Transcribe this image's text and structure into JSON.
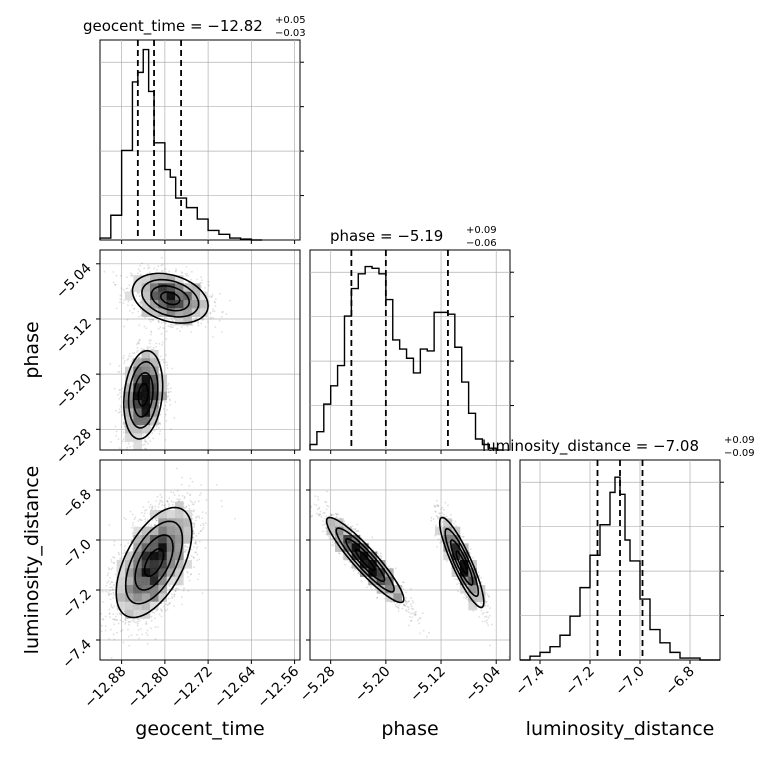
{
  "chart_data": {
    "type": "corner",
    "parameters": [
      {
        "name": "geocent_time",
        "range": [
          -12.92,
          -12.55
        ],
        "ticks": [
          -12.88,
          -12.8,
          -12.72,
          -12.64,
          -12.56
        ],
        "tick_labels": [
          "−12.88",
          "−12.80",
          "−12.72",
          "−12.64",
          "−12.56"
        ],
        "title": {
          "main": "geocent_time = −12.82",
          "upper": "+0.05",
          "lower": "−0.03"
        },
        "quantiles": [
          -12.85,
          -12.82,
          -12.77
        ],
        "hist": {
          "edges": [
            -12.92,
            -12.9,
            -12.88,
            -12.86,
            -12.85,
            -12.84,
            -12.83,
            -12.82,
            -12.8,
            -12.79,
            -12.78,
            -12.76,
            -12.74,
            -12.72,
            -12.7,
            -12.68,
            -12.66,
            -12.64,
            -12.62
          ],
          "counts": [
            0.01,
            0.13,
            0.47,
            0.83,
            0.88,
            1.0,
            0.78,
            0.51,
            0.37,
            0.33,
            0.22,
            0.17,
            0.11,
            0.05,
            0.03,
            0.01,
            0.005,
            0.0
          ]
        },
        "ymax": 1.05
      },
      {
        "name": "phase",
        "range": [
          -5.31,
          -5.02
        ],
        "ticks": [
          -5.28,
          -5.2,
          -5.12,
          -5.04
        ],
        "tick_labels": [
          "−5.28",
          "−5.20",
          "−5.12",
          "−5.04"
        ],
        "title": {
          "main": "phase = −5.19",
          "upper": "+0.09",
          "lower": "−0.06"
        },
        "quantiles": [
          -5.25,
          -5.2,
          -5.11
        ],
        "hist": {
          "edges": [
            -5.31,
            -5.3,
            -5.29,
            -5.28,
            -5.27,
            -5.26,
            -5.25,
            -5.24,
            -5.23,
            -5.22,
            -5.21,
            -5.2,
            -5.19,
            -5.18,
            -5.17,
            -5.16,
            -5.15,
            -5.14,
            -5.13,
            -5.12,
            -5.11,
            -5.1,
            -5.09,
            -5.08,
            -5.07,
            -5.06,
            -5.05,
            -5.04,
            -5.03
          ],
          "counts": [
            0.03,
            0.1,
            0.25,
            0.35,
            0.46,
            0.73,
            0.88,
            0.96,
            1.0,
            0.99,
            0.96,
            0.82,
            0.6,
            0.55,
            0.5,
            0.42,
            0.55,
            0.54,
            0.75,
            0.75,
            0.74,
            0.56,
            0.37,
            0.2,
            0.06,
            0.03,
            0.01,
            0.0
          ],
          "hist_note": "step histogram"
        },
        "ymax": 1.09
      },
      {
        "name": "luminosity_distance",
        "range": [
          -7.48,
          -6.68
        ],
        "ticks": [
          -7.4,
          -7.2,
          -7.0,
          -6.8
        ],
        "tick_labels": [
          "−7.4",
          "−7.2",
          "−7.0",
          "−6.8"
        ],
        "title": {
          "main": "luminosity_distance = −7.08",
          "upper": "+0.09",
          "lower": "−0.09"
        },
        "quantiles": [
          -7.17,
          -7.08,
          -6.99
        ],
        "hist": {
          "edges": [
            -7.48,
            -7.44,
            -7.4,
            -7.36,
            -7.32,
            -7.28,
            -7.24,
            -7.2,
            -7.16,
            -7.12,
            -7.1,
            -7.08,
            -7.06,
            -7.04,
            -7.0,
            -6.96,
            -6.92,
            -6.88,
            -6.84,
            -6.8,
            -6.76,
            -6.72,
            -6.68
          ],
          "counts": [
            0.0,
            0.02,
            0.04,
            0.07,
            0.13,
            0.23,
            0.38,
            0.55,
            0.71,
            0.88,
            0.96,
            0.87,
            0.63,
            0.52,
            0.32,
            0.16,
            0.09,
            0.04,
            0.01,
            0.01,
            0.0,
            0.0
          ]
        },
        "ymax": 1.05
      }
    ],
    "pairs": [
      {
        "x": "geocent_time",
        "y": "phase",
        "modes": [
          {
            "mean": [
              -12.79,
              -5.09
            ],
            "sigma": [
              0.035,
              0.018
            ],
            "corr": -0.3,
            "weight": 0.45
          },
          {
            "mean": [
              -12.84,
              -5.23
            ],
            "sigma": [
              0.018,
              0.032
            ],
            "corr": 0.2,
            "weight": 0.55
          }
        ]
      },
      {
        "x": "geocent_time",
        "y": "luminosity_distance",
        "modes": [
          {
            "mean": [
              -12.82,
              -7.09
            ],
            "sigma": [
              0.035,
              0.11
            ],
            "corr": 0.55,
            "weight": 1.0
          }
        ]
      },
      {
        "x": "phase",
        "y": "luminosity_distance",
        "modes": [
          {
            "mean": [
              -5.23,
              -7.08
            ],
            "sigma": [
              0.028,
              0.085
            ],
            "corr": -0.92,
            "weight": 0.6
          },
          {
            "mean": [
              -5.09,
              -7.09
            ],
            "sigma": [
              0.016,
              0.09
            ],
            "corr": -0.88,
            "weight": 0.4
          }
        ]
      }
    ],
    "grid": true,
    "contour_levels": [
      "0.5",
      "1",
      "1.5",
      "2"
    ],
    "axis_labels": [
      "geocent_time",
      "phase",
      "luminosity_distance"
    ],
    "y_axis_labels": [
      "phase",
      "luminosity_distance"
    ]
  },
  "colors": {
    "line": "#000000",
    "grid": "#b0b0b0",
    "scatter": "#7f7f7f"
  }
}
